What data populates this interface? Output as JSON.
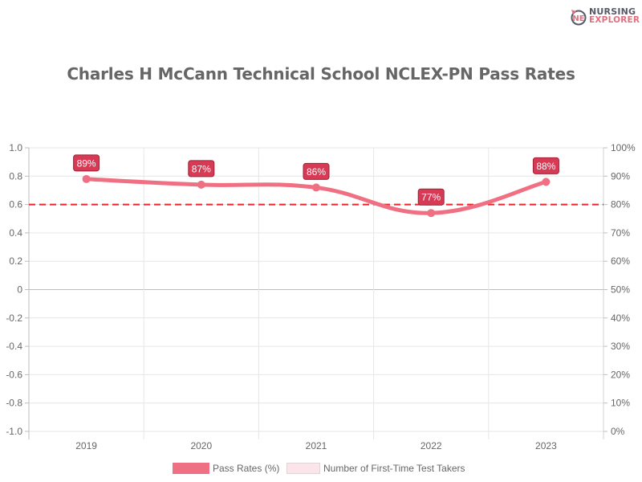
{
  "logo": {
    "line1": "NURSING",
    "line2": "EXPLORER",
    "accent": "#e0707f",
    "dark": "#555a66"
  },
  "title": "Charles H McCann Technical School NCLEX-PN Pass Rates",
  "legend": [
    {
      "label": "Pass Rates (%)",
      "color": "#f07083",
      "border": "#f07083"
    },
    {
      "label": "Number of First-Time Test Takers",
      "color": "#fbe5ea",
      "border": "#e0d4d8"
    }
  ],
  "axes": {
    "left_ticks": [
      "1.0",
      "0.8",
      "0.6",
      "0.4",
      "0.2",
      "0",
      "-0.2",
      "-0.4",
      "-0.6",
      "-0.8",
      "-1.0"
    ],
    "right_ticks": [
      "100%",
      "90%",
      "80%",
      "70%",
      "60%",
      "50%",
      "40%",
      "30%",
      "20%",
      "10%",
      "0%"
    ],
    "x_ticks": [
      "2019",
      "2020",
      "2021",
      "2022",
      "2023"
    ]
  },
  "chart_data": {
    "type": "line",
    "title": "Charles H McCann Technical School NCLEX-PN Pass Rates",
    "categories": [
      "2019",
      "2020",
      "2021",
      "2022",
      "2023"
    ],
    "series": [
      {
        "name": "Pass Rates (%)",
        "axis": "right",
        "values": [
          89,
          87,
          86,
          77,
          88
        ],
        "color": "#f07083",
        "data_labels": [
          "89%",
          "87%",
          "86%",
          "77%",
          "88%"
        ]
      },
      {
        "name": "Number of First-Time Test Takers",
        "axis": "left",
        "values": [],
        "color": "#fbe5ea"
      }
    ],
    "reference_line": {
      "value": 80,
      "axis": "right",
      "style": "dashed",
      "color": "#e8262d"
    },
    "xlabel": "",
    "ylabel_left": "",
    "ylabel_right": "",
    "ylim_left": [
      -1.0,
      1.0
    ],
    "ylim_right": [
      0,
      100
    ],
    "grid": true,
    "legend_position": "bottom"
  }
}
